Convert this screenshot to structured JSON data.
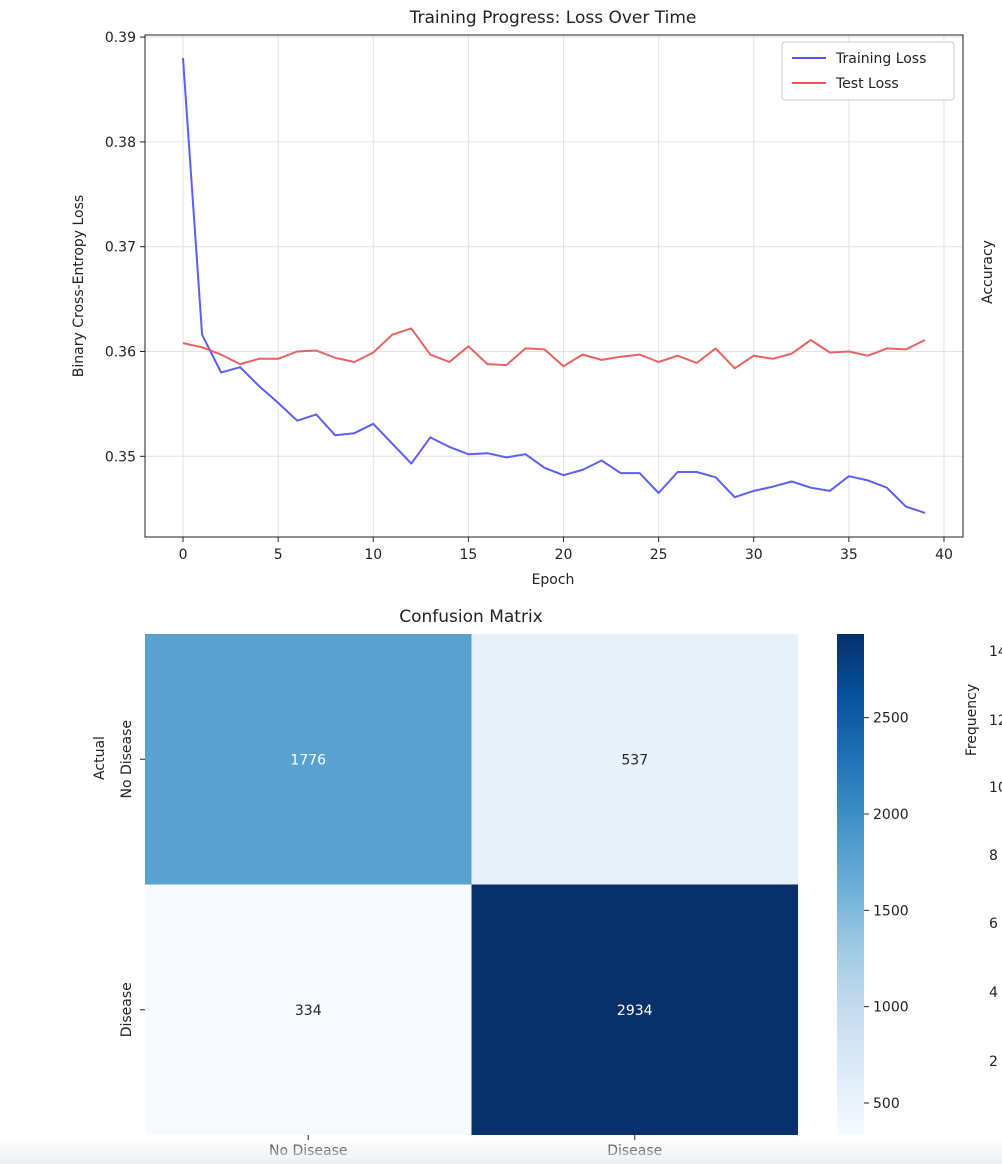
{
  "chart_data": [
    {
      "type": "line",
      "title": "Training Progress: Loss Over Time",
      "xlabel": "Epoch",
      "ylabel": "Binary Cross-Entropy Loss",
      "xlim": [
        -2,
        41
      ],
      "ylim": [
        0.3423,
        0.3902
      ],
      "xticks": [
        0,
        5,
        10,
        15,
        20,
        25,
        30,
        35,
        40
      ],
      "yticks": [
        0.35,
        0.36,
        0.37,
        0.38,
        0.39
      ],
      "grid": true,
      "legend": "top-right",
      "x": [
        0,
        1,
        2,
        3,
        4,
        5,
        6,
        7,
        8,
        9,
        10,
        11,
        12,
        13,
        14,
        15,
        16,
        17,
        18,
        19,
        20,
        21,
        22,
        23,
        24,
        25,
        26,
        27,
        28,
        29,
        30,
        31,
        32,
        33,
        34,
        35,
        36,
        37,
        38,
        39
      ],
      "series": [
        {
          "name": "Training Loss",
          "color": "#5555f0",
          "values": [
            0.388,
            0.3616,
            0.358,
            0.3585,
            0.3567,
            0.3551,
            0.3534,
            0.354,
            0.352,
            0.3522,
            0.3531,
            0.3512,
            0.3493,
            0.3518,
            0.3509,
            0.3502,
            0.3503,
            0.3499,
            0.3502,
            0.3489,
            0.3482,
            0.3487,
            0.3496,
            0.3484,
            0.3484,
            0.3465,
            0.3485,
            0.3485,
            0.348,
            0.3461,
            0.3467,
            0.3471,
            0.3476,
            0.347,
            0.3467,
            0.3481,
            0.3477,
            0.347,
            0.3452,
            0.3446
          ]
        },
        {
          "name": "Test Loss",
          "color": "#e85a5a",
          "values": [
            0.3608,
            0.3604,
            0.3597,
            0.3588,
            0.3593,
            0.3593,
            0.36,
            0.3601,
            0.3594,
            0.359,
            0.3599,
            0.3616,
            0.3622,
            0.3597,
            0.359,
            0.3605,
            0.3588,
            0.3587,
            0.3603,
            0.3602,
            0.3586,
            0.3597,
            0.3592,
            0.3595,
            0.3597,
            0.359,
            0.3596,
            0.3589,
            0.3603,
            0.3584,
            0.3596,
            0.3593,
            0.3598,
            0.3611,
            0.3599,
            0.36,
            0.3596,
            0.3603,
            0.3602,
            0.3611
          ]
        }
      ]
    },
    {
      "type": "heatmap",
      "title": "Confusion Matrix",
      "ylabel": "Actual",
      "row_labels": [
        "No Disease",
        "Disease"
      ],
      "col_labels": [
        "No Disease",
        "Disease"
      ],
      "values": [
        [
          1776,
          537
        ],
        [
          334,
          2934
        ]
      ],
      "colormap": "Blues",
      "colorbar": {
        "min": 334,
        "max": 2934,
        "ticks": [
          500,
          1000,
          1500,
          2000,
          2500
        ]
      }
    }
  ],
  "right_panel_partial": {
    "top_ylabel": "Accuracy",
    "bottom_ylabel": "Frequency",
    "tick_fragments": [
      "14",
      "12",
      "10",
      "8",
      "6",
      "4",
      "2"
    ]
  }
}
